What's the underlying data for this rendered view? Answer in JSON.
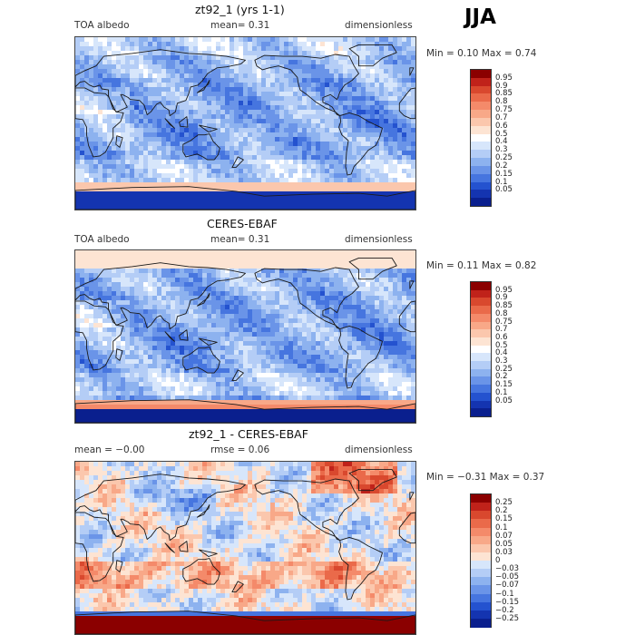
{
  "season": "JJA",
  "panels": [
    {
      "title": "zt92_1 (yrs 1-1)",
      "left": "TOA albedo",
      "center": "mean=   0.31",
      "right": "dimensionless",
      "stats": "Min =    0.10  Max =    0.74",
      "levels": [
        "0.95",
        "0.9",
        "0.85",
        "0.8",
        "0.75",
        "0.7",
        "0.6",
        "0.5",
        "0.4",
        "0.3",
        "0.25",
        "0.2",
        "0.15",
        "0.1",
        "0.05"
      ],
      "colors": [
        "#8b0000",
        "#c0221a",
        "#d9482e",
        "#ea6a4a",
        "#f48a6a",
        "#f8a888",
        "#fbc7ad",
        "#fde4d3",
        "#ffffff",
        "#d7e6fb",
        "#b4cdf6",
        "#8db2ef",
        "#6a94e8",
        "#4675df",
        "#2452cf",
        "#1434b0",
        "#0a1f8e"
      ],
      "map_type": "abs1"
    },
    {
      "title": "CERES-EBAF",
      "left": "TOA albedo",
      "center": "mean=   0.31",
      "right": "dimensionless",
      "stats": "Min =    0.11  Max =    0.82",
      "levels": [
        "0.95",
        "0.9",
        "0.85",
        "0.8",
        "0.75",
        "0.7",
        "0.6",
        "0.5",
        "0.4",
        "0.3",
        "0.25",
        "0.2",
        "0.15",
        "0.1",
        "0.05"
      ],
      "colors": [
        "#8b0000",
        "#c0221a",
        "#d9482e",
        "#ea6a4a",
        "#f48a6a",
        "#f8a888",
        "#fbc7ad",
        "#fde4d3",
        "#ffffff",
        "#d7e6fb",
        "#b4cdf6",
        "#8db2ef",
        "#6a94e8",
        "#4675df",
        "#2452cf",
        "#1434b0",
        "#0a1f8e"
      ],
      "map_type": "abs2"
    },
    {
      "title": "zt92_1 - CERES-EBAF",
      "left": "mean =   −0.00",
      "center": "rmse =    0.06",
      "right": "dimensionless",
      "stats": "Min =  −0.31  Max =    0.37",
      "levels": [
        "0.25",
        "0.2",
        "0.15",
        "0.1",
        "0.07",
        "0.05",
        "0.03",
        "0",
        "−0.03",
        "−0.05",
        "−0.07",
        "−0.1",
        "−0.15",
        "−0.2",
        "−0.25"
      ],
      "colors": [
        "#8b0000",
        "#c0221a",
        "#d9482e",
        "#ea6a4a",
        "#f48a6a",
        "#f8a888",
        "#fbc7ad",
        "#fde4d3",
        "#d7e6fb",
        "#b4cdf6",
        "#8db2ef",
        "#6a94e8",
        "#4675df",
        "#2452cf",
        "#1434b0",
        "#0a1f8e"
      ],
      "map_type": "diff"
    }
  ]
}
